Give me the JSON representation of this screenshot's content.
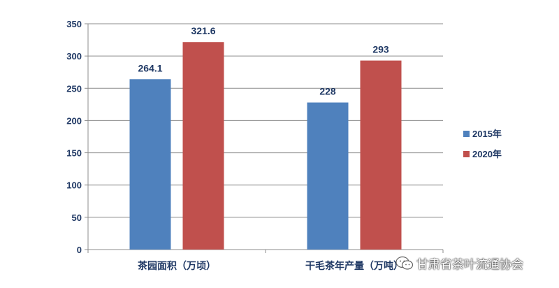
{
  "chart_data": {
    "type": "bar",
    "categories": [
      "茶园面积（万顷）",
      "干毛茶年产量（万吨）"
    ],
    "series": [
      {
        "name": "2015年",
        "values": [
          264.1,
          228
        ],
        "color": "#4f81bd"
      },
      {
        "name": "2020年",
        "values": [
          321.6,
          293
        ],
        "color": "#c0504d"
      }
    ],
    "yticks": [
      0,
      50,
      100,
      150,
      200,
      250,
      300,
      350
    ],
    "ylim": [
      0,
      350
    ],
    "grid": true,
    "legend": "right"
  },
  "watermark": {
    "text": "甘肃省茶叶流通协会",
    "icon": "wechat-icon"
  }
}
